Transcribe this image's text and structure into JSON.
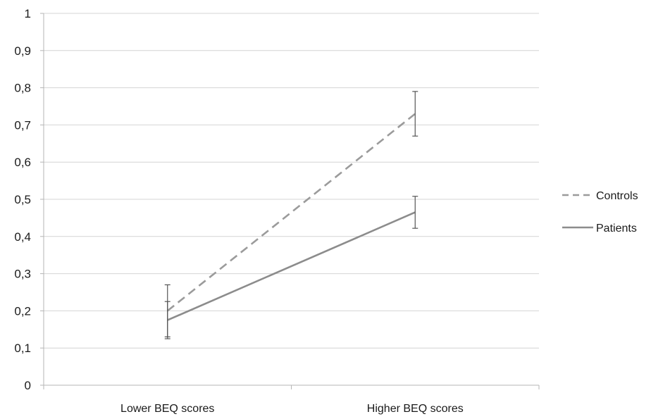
{
  "chart_data": {
    "type": "line",
    "title": "",
    "xlabel": "",
    "ylabel": "",
    "categories": [
      "Lower BEQ scores",
      "Higher BEQ scores"
    ],
    "ylim": [
      0,
      1
    ],
    "yticks": [
      "0",
      "0,1",
      "0,2",
      "0,3",
      "0,4",
      "0,5",
      "0,6",
      "0,7",
      "0,8",
      "0,9",
      "1"
    ],
    "grid": true,
    "legend_position": "right",
    "series": [
      {
        "name": "Controls",
        "values": [
          0.2,
          0.73
        ],
        "error": [
          0.07,
          0.06
        ],
        "line_style": "dashed",
        "color": "#9b9b9b"
      },
      {
        "name": "Patients",
        "values": [
          0.175,
          0.465
        ],
        "error": [
          0.05,
          0.043
        ],
        "line_style": "solid",
        "color": "#8c8c8c"
      }
    ]
  }
}
